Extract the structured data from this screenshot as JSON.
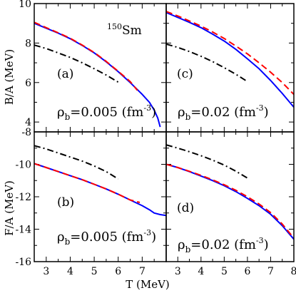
{
  "figure": {
    "nucleus": {
      "mass": "150",
      "symbol": "Sm"
    },
    "x_title": "T (MeV)",
    "y_title_top": "B/A (MeV)",
    "y_title_bottom": "F/A (MeV)",
    "x_ticks": [
      "3",
      "4",
      "5",
      "6",
      "7",
      "8"
    ],
    "y_ticks_top": [
      "4",
      "6",
      "8",
      "10"
    ],
    "y_ticks_bottom": [
      "-16",
      "-14",
      "-12",
      "-10",
      "-8"
    ]
  },
  "chart_data": [
    {
      "type": "line",
      "panel": "(a)",
      "annotation": {
        "rho": "ρ",
        "sub": "b",
        "value": "=0.005 (fm",
        "sup": "-3",
        "close": ")"
      },
      "xlim": [
        2.5,
        8
      ],
      "ylim": [
        3.5,
        10
      ],
      "series": [
        {
          "style": "solid",
          "color": "#0000ff",
          "points": [
            [
              2.5,
              9.0
            ],
            [
              3,
              8.75
            ],
            [
              3.5,
              8.5
            ],
            [
              4,
              8.22
            ],
            [
              4.5,
              7.88
            ],
            [
              5,
              7.5
            ],
            [
              5.5,
              7.05
            ],
            [
              6,
              6.55
            ],
            [
              6.5,
              6.0
            ],
            [
              7,
              5.4
            ],
            [
              7.3,
              5.0
            ],
            [
              7.5,
              4.6
            ],
            [
              7.65,
              4.2
            ],
            [
              7.75,
              3.75
            ]
          ]
        },
        {
          "style": "dashed",
          "color": "#ff0000",
          "points": [
            [
              2.5,
              9.05
            ],
            [
              3,
              8.78
            ],
            [
              3.5,
              8.52
            ],
            [
              4,
              8.24
            ],
            [
              4.5,
              7.9
            ],
            [
              5,
              7.52
            ],
            [
              5.5,
              7.07
            ],
            [
              6,
              6.57
            ],
            [
              6.5,
              6.05
            ],
            [
              6.8,
              5.6
            ]
          ]
        },
        {
          "style": "dash-dot",
          "color": "#000000",
          "points": [
            [
              2.5,
              7.9
            ],
            [
              3,
              7.72
            ],
            [
              3.5,
              7.5
            ],
            [
              4,
              7.27
            ],
            [
              4.5,
              7.0
            ],
            [
              5,
              6.7
            ],
            [
              5.5,
              6.38
            ],
            [
              6,
              6.02
            ]
          ]
        }
      ]
    },
    {
      "type": "line",
      "panel": "(c)",
      "annotation": {
        "rho": "ρ",
        "sub": "b",
        "value": "=0.02 (fm",
        "sup": "-3",
        "close": ")"
      },
      "xlim": [
        2.5,
        8
      ],
      "ylim": [
        3.5,
        10
      ],
      "series": [
        {
          "style": "solid",
          "color": "#0000ff",
          "points": [
            [
              2.5,
              9.55
            ],
            [
              3,
              9.3
            ],
            [
              3.5,
              9.05
            ],
            [
              4,
              8.78
            ],
            [
              4.5,
              8.45
            ],
            [
              5,
              8.1
            ],
            [
              5.5,
              7.68
            ],
            [
              6,
              7.2
            ],
            [
              6.5,
              6.7
            ],
            [
              7,
              6.1
            ],
            [
              7.5,
              5.45
            ],
            [
              8,
              4.75
            ]
          ]
        },
        {
          "style": "dashed",
          "color": "#ff0000",
          "points": [
            [
              2.5,
              9.6
            ],
            [
              3,
              9.37
            ],
            [
              3.5,
              9.12
            ],
            [
              4,
              8.86
            ],
            [
              4.5,
              8.56
            ],
            [
              5,
              8.23
            ],
            [
              5.5,
              7.85
            ],
            [
              6,
              7.45
            ],
            [
              6.5,
              7.0
            ],
            [
              7,
              6.52
            ],
            [
              7.5,
              6.0
            ],
            [
              8,
              5.4
            ]
          ]
        },
        {
          "style": "dash-dot",
          "color": "#000000",
          "points": [
            [
              2.5,
              7.95
            ],
            [
              3,
              7.78
            ],
            [
              3.5,
              7.57
            ],
            [
              4,
              7.33
            ],
            [
              4.5,
              7.06
            ],
            [
              5,
              6.75
            ],
            [
              5.5,
              6.42
            ],
            [
              6,
              6.05
            ]
          ]
        }
      ]
    },
    {
      "type": "line",
      "panel": "(b)",
      "annotation": {
        "rho": "ρ",
        "sub": "b",
        "value": "=0.005 (fm",
        "sup": "-3",
        "close": ")"
      },
      "xlim": [
        2.5,
        8
      ],
      "ylim": [
        -16,
        -8
      ],
      "series": [
        {
          "style": "solid",
          "color": "#0000ff",
          "points": [
            [
              2.5,
              -9.95
            ],
            [
              3,
              -10.2
            ],
            [
              3.5,
              -10.45
            ],
            [
              4,
              -10.7
            ],
            [
              4.5,
              -10.95
            ],
            [
              5,
              -11.23
            ],
            [
              5.5,
              -11.52
            ],
            [
              6,
              -11.84
            ],
            [
              6.5,
              -12.2
            ],
            [
              7,
              -12.55
            ],
            [
              7.3,
              -12.8
            ],
            [
              7.5,
              -13.0
            ],
            [
              7.75,
              -13.1
            ],
            [
              8,
              -13.15
            ]
          ]
        },
        {
          "style": "dashed",
          "color": "#ff0000",
          "points": [
            [
              2.5,
              -9.95
            ],
            [
              3,
              -10.2
            ],
            [
              3.5,
              -10.45
            ],
            [
              4,
              -10.7
            ],
            [
              4.5,
              -10.95
            ],
            [
              5,
              -11.23
            ],
            [
              5.5,
              -11.52
            ],
            [
              6,
              -11.84
            ],
            [
              6.5,
              -12.2
            ],
            [
              6.9,
              -12.35
            ]
          ]
        },
        {
          "style": "dash-dot",
          "color": "#000000",
          "points": [
            [
              2.5,
              -8.85
            ],
            [
              3,
              -9.05
            ],
            [
              3.5,
              -9.3
            ],
            [
              4,
              -9.55
            ],
            [
              4.5,
              -9.8
            ],
            [
              5,
              -10.1
            ],
            [
              5.5,
              -10.45
            ],
            [
              6,
              -10.9
            ]
          ]
        }
      ]
    },
    {
      "type": "line",
      "panel": "(d)",
      "annotation": {
        "rho": "ρ",
        "sub": "b",
        "value": "=0.02 (fm",
        "sup": "-3",
        "close": ")"
      },
      "xlim": [
        2.5,
        8
      ],
      "ylim": [
        -16,
        -8
      ],
      "series": [
        {
          "style": "solid",
          "color": "#0000ff",
          "points": [
            [
              2.5,
              -10.0
            ],
            [
              3,
              -10.2
            ],
            [
              3.5,
              -10.45
            ],
            [
              4,
              -10.72
            ],
            [
              4.5,
              -11.0
            ],
            [
              5,
              -11.32
            ],
            [
              5.5,
              -11.68
            ],
            [
              6,
              -12.1
            ],
            [
              6.5,
              -12.55
            ],
            [
              7,
              -13.08
            ],
            [
              7.5,
              -13.78
            ],
            [
              8,
              -14.62
            ]
          ]
        },
        {
          "style": "dashed",
          "color": "#ff0000",
          "points": [
            [
              2.5,
              -10.0
            ],
            [
              3,
              -10.2
            ],
            [
              3.5,
              -10.43
            ],
            [
              4,
              -10.68
            ],
            [
              4.5,
              -10.96
            ],
            [
              5,
              -11.26
            ],
            [
              5.5,
              -11.6
            ],
            [
              6,
              -12.0
            ],
            [
              6.5,
              -12.45
            ],
            [
              7,
              -12.98
            ],
            [
              7.5,
              -13.68
            ],
            [
              8,
              -14.55
            ]
          ]
        },
        {
          "style": "dash-dot",
          "color": "#000000",
          "points": [
            [
              2.5,
              -8.8
            ],
            [
              3,
              -9.0
            ],
            [
              3.5,
              -9.22
            ],
            [
              4,
              -9.47
            ],
            [
              4.5,
              -9.74
            ],
            [
              5,
              -10.05
            ],
            [
              5.5,
              -10.42
            ],
            [
              6,
              -10.85
            ]
          ]
        }
      ]
    }
  ]
}
